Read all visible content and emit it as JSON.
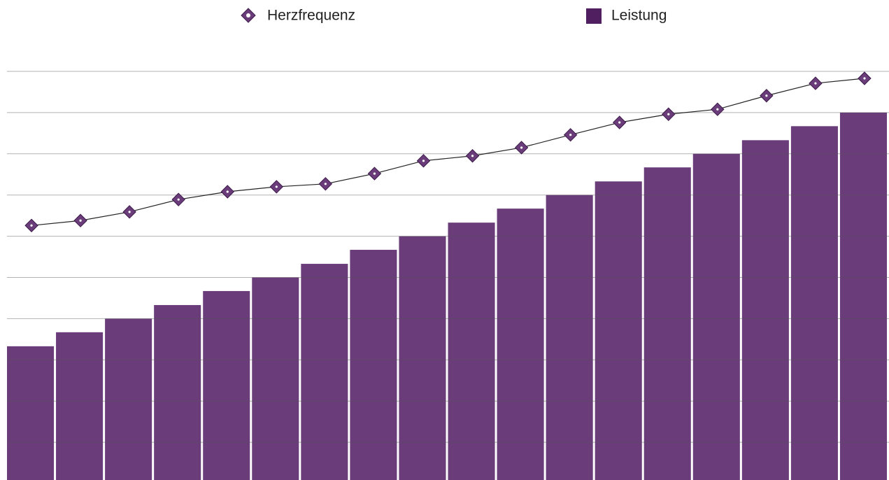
{
  "chart_data": {
    "type": "bar-line",
    "categories": [
      null,
      null,
      null,
      null,
      null,
      null,
      null,
      null,
      null,
      null,
      null,
      null,
      null,
      null,
      null,
      null,
      null,
      null
    ],
    "series": [
      {
        "name": "Herzfrequenz",
        "type": "line",
        "color": "#6a3d7a",
        "line_color": "#222222",
        "values": [
          6.26,
          6.38,
          6.59,
          6.89,
          7.08,
          7.2,
          7.27,
          7.52,
          7.83,
          7.95,
          8.15,
          8.46,
          8.76,
          8.96,
          9.08,
          9.41,
          9.71,
          9.83
        ]
      },
      {
        "name": "Leistung",
        "type": "bar",
        "color": "#6a3d7a",
        "values": [
          3.33,
          3.67,
          4,
          4.33,
          4.67,
          5,
          5.33,
          5.67,
          6,
          6.33,
          6.67,
          7,
          7.33,
          7.67,
          8,
          8.33,
          8.67,
          9
        ]
      }
    ],
    "ylim": [
      0,
      10
    ],
    "yticks": [
      1,
      2,
      3,
      4,
      5,
      6,
      7,
      8,
      9,
      10
    ],
    "grid": true,
    "legend": "top"
  }
}
